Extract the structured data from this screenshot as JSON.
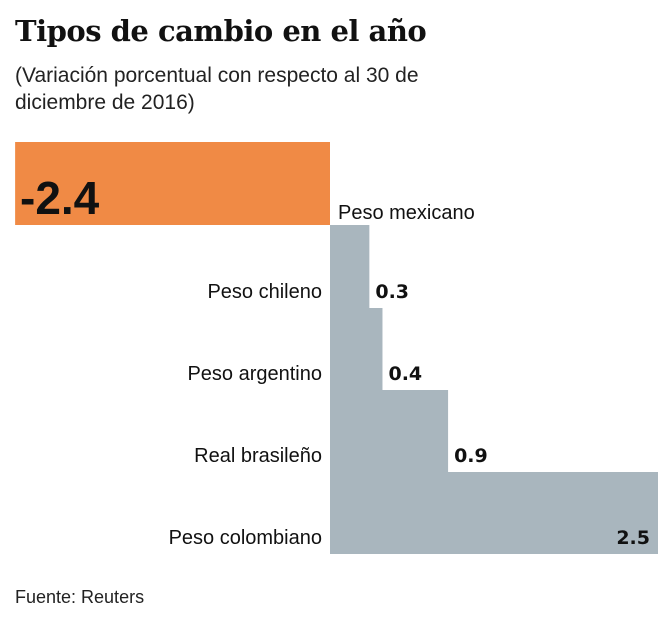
{
  "chart_data": {
    "type": "bar",
    "orientation": "horizontal",
    "title": "Tipos de cambio en el año",
    "subtitle": "(Variación porcentual con respecto al 30 de diciembre de 2016)",
    "categories": [
      "Peso mexicano",
      "Peso chileno",
      "Peso argentino",
      "Real brasileño",
      "Peso colombiano"
    ],
    "values": [
      -2.4,
      0.3,
      0.4,
      0.9,
      2.5
    ],
    "value_labels": [
      "-2.4",
      "0.3",
      "0.4",
      "0.9",
      "2.5"
    ],
    "colors": {
      "negative": "#F08A45",
      "positive": "#A9B6BE"
    },
    "xlim": [
      -2.4,
      2.5
    ],
    "grid": false,
    "source": "Fuente: Reuters"
  }
}
